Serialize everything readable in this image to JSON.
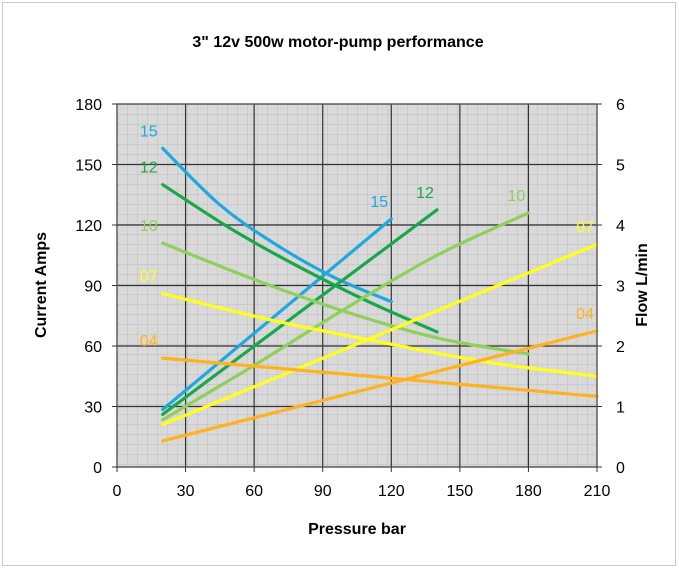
{
  "chart_data": {
    "type": "line",
    "title": "3\" 12v 500w motor-pump performance",
    "xlabel": "Pressure bar",
    "ylabel": "Current Amps",
    "y2label": "Flow L/min",
    "xlim": [
      0,
      210
    ],
    "ylim": [
      0,
      180
    ],
    "y2lim": [
      0,
      6
    ],
    "xticks": [
      0,
      30,
      60,
      90,
      120,
      150,
      180,
      210
    ],
    "yticks": [
      0,
      30,
      60,
      90,
      120,
      150,
      180
    ],
    "y2ticks": [
      0,
      1,
      2,
      3,
      4,
      5,
      6
    ],
    "grid": true,
    "series": [
      {
        "name": "15",
        "color": "#1fa8e0",
        "current": {
          "x": [
            20,
            45,
            70,
            95,
            120
          ],
          "y": [
            158,
            130,
            110,
            94,
            82
          ]
        },
        "flow": {
          "x": [
            20,
            120
          ],
          "y": [
            0.95,
            4.1
          ]
        }
      },
      {
        "name": "12",
        "color": "#18a84a",
        "current": {
          "x": [
            20,
            50,
            80,
            110,
            140
          ],
          "y": [
            140,
            118,
            99,
            82,
            67
          ]
        },
        "flow": {
          "x": [
            20,
            140
          ],
          "y": [
            0.87,
            4.25
          ]
        }
      },
      {
        "name": "10",
        "color": "#8ed05a",
        "current": {
          "x": [
            20,
            60,
            100,
            140,
            180
          ],
          "y": [
            111,
            93,
            77,
            64,
            56
          ]
        },
        "flow": {
          "x": [
            20,
            60,
            100,
            140,
            180
          ],
          "y": [
            0.78,
            1.68,
            2.62,
            3.5,
            4.2
          ]
        }
      },
      {
        "name": "07",
        "color": "#ffff1e",
        "current": {
          "x": [
            20,
            67,
            115,
            162,
            210
          ],
          "y": [
            86,
            73,
            62,
            52,
            45
          ]
        },
        "flow": {
          "x": [
            20,
            210
          ],
          "y": [
            0.7,
            3.68
          ]
        }
      },
      {
        "name": "04",
        "color": "#ffb21e",
        "current": {
          "x": [
            20,
            210
          ],
          "y": [
            54,
            35
          ]
        },
        "flow": {
          "x": [
            20,
            210
          ],
          "y": [
            0.43,
            2.25
          ]
        }
      }
    ]
  }
}
